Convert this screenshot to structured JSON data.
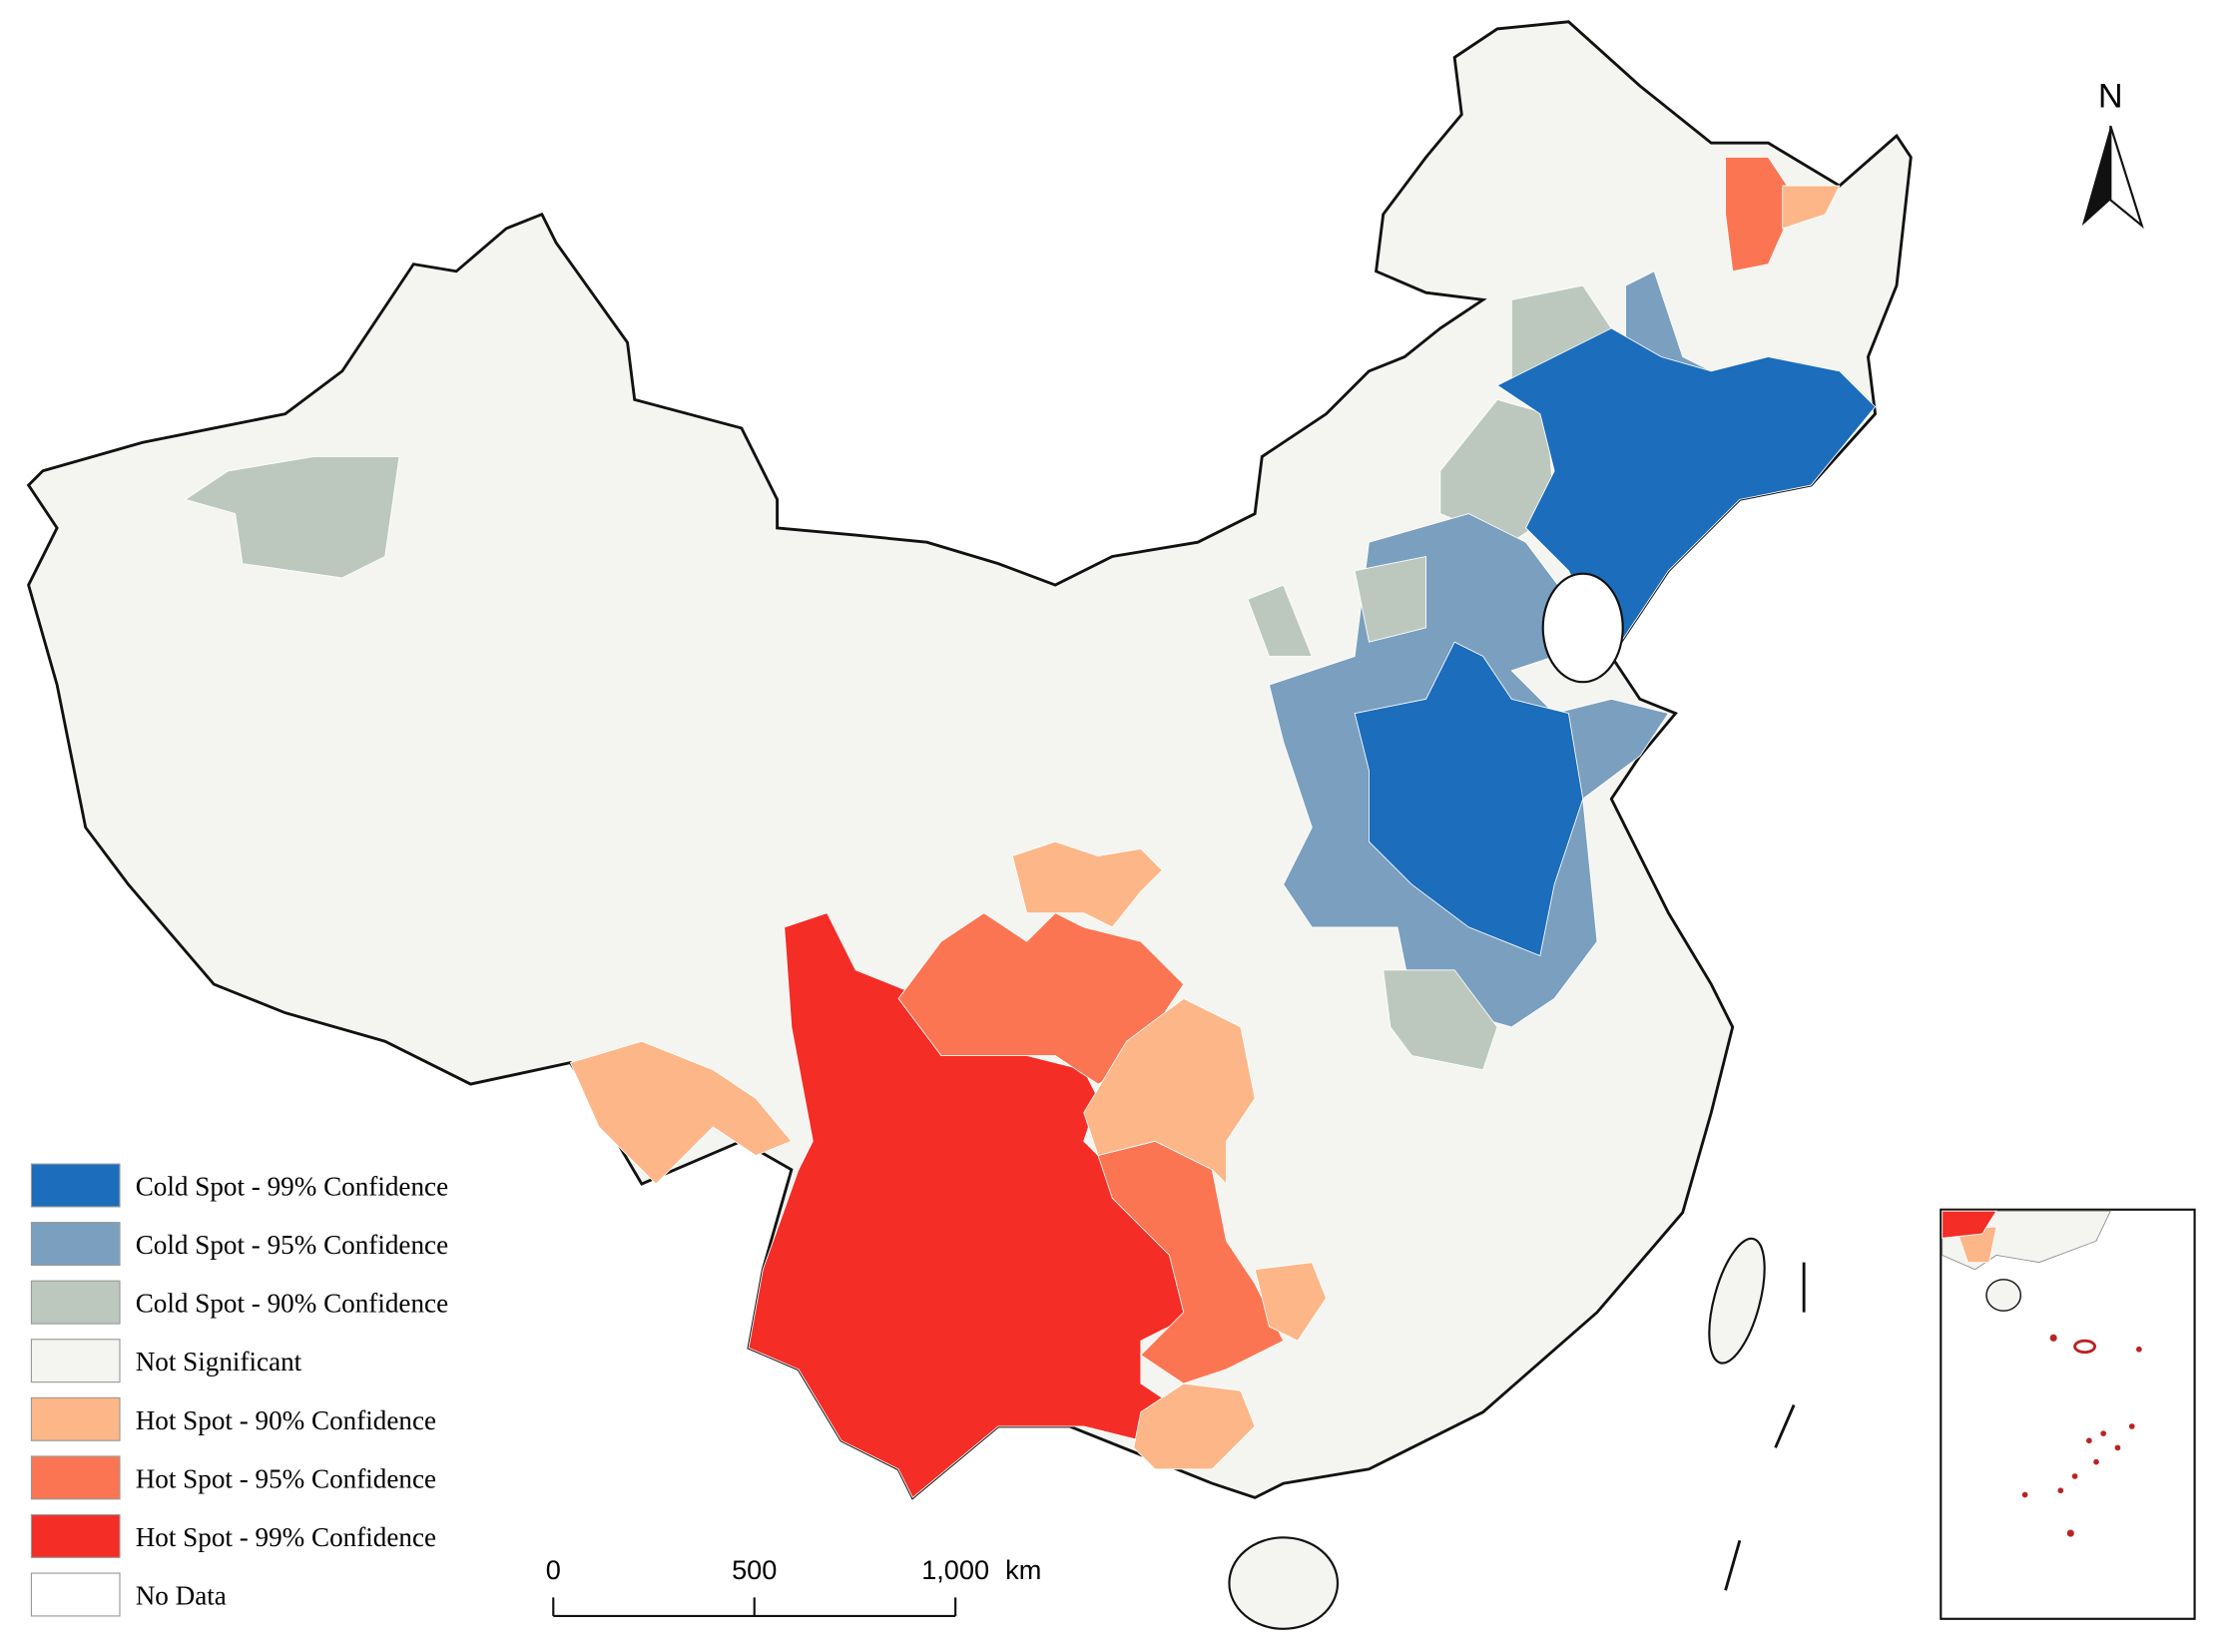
{
  "north_arrow": {
    "label": "N"
  },
  "legend": {
    "items": [
      {
        "label": "Cold Spot - 99% Confidence",
        "color": "#1c6dbb"
      },
      {
        "label": "Cold Spot - 95% Confidence",
        "color": "#7a9fbf"
      },
      {
        "label": "Cold Spot - 90% Confidence",
        "color": "#bcc8be"
      },
      {
        "label": "Not Significant",
        "color": "#f4f5f0"
      },
      {
        "label": "Hot Spot - 90% Confidence",
        "color": "#fcb688"
      },
      {
        "label": "Hot Spot - 95% Confidence",
        "color": "#fb7553"
      },
      {
        "label": "Hot Spot - 99% Confidence",
        "color": "#f42d26"
      },
      {
        "label": "No Data",
        "color": "#ffffff"
      }
    ]
  },
  "scale_bar": {
    "ticks": [
      0,
      500,
      {
        "value": 1000,
        "label": "1,000"
      }
    ],
    "unit": "km"
  }
}
